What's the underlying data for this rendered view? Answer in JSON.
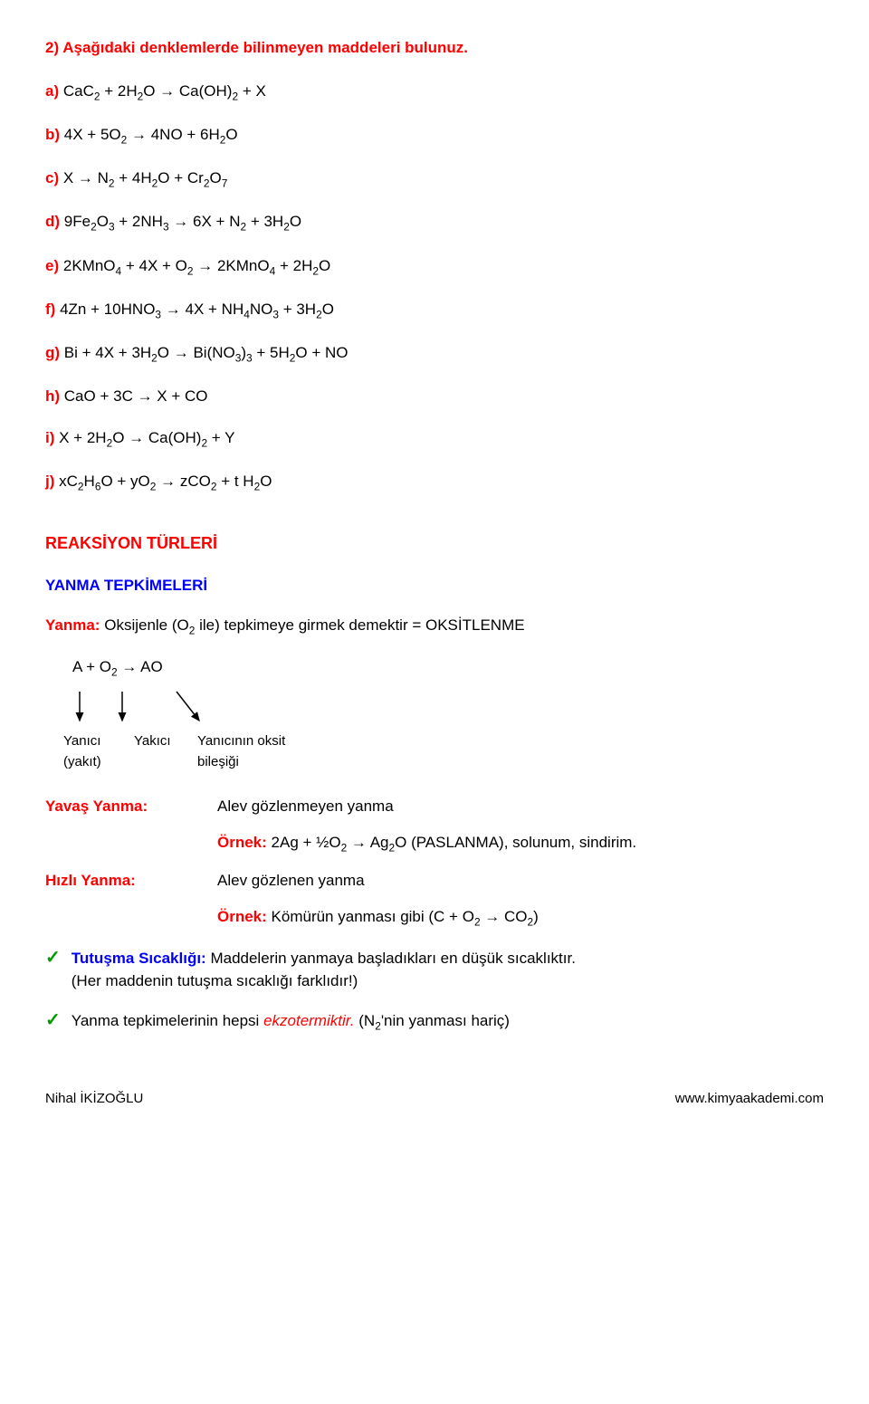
{
  "question": {
    "number": "2)",
    "text": "Aşağıdaki denklemlerde bilinmeyen maddeleri bulunuz."
  },
  "equations": {
    "a": {
      "lbl": "a)",
      "html": "CaC<sub>2</sub> + 2H<sub>2</sub>O → Ca(OH)<sub>2</sub> + X"
    },
    "b": {
      "lbl": "b)",
      "html": "4X + 5O<sub>2</sub> → 4NO + 6H<sub>2</sub>O"
    },
    "c": {
      "lbl": "c)",
      "html": "X → N<sub>2</sub> + 4H<sub>2</sub>O + Cr<sub>2</sub>O<sub>7</sub>"
    },
    "d": {
      "lbl": "d)",
      "html": "9Fe<sub>2</sub>O<sub>3</sub> + 2NH<sub>3</sub> → 6X + N<sub>2</sub> + 3H<sub>2</sub>O"
    },
    "e": {
      "lbl": "e)",
      "html": "2KMnO<sub>4</sub> + 4X + O<sub>2</sub> → 2KMnO<sub>4</sub> + 2H<sub>2</sub>O"
    },
    "f": {
      "lbl": "f)",
      "html": "4Zn + 10HNO<sub>3</sub> → 4X + NH<sub>4</sub>NO<sub>3</sub> + 3H<sub>2</sub>O"
    },
    "g": {
      "lbl": "g)",
      "html": "Bi + 4X + 3H<sub>2</sub>O  →  Bi(NO<sub>3</sub>)<sub>3</sub> + 5H<sub>2</sub>O + NO"
    },
    "h": {
      "lbl": "h)",
      "html": "CaO + 3C → X + CO"
    },
    "i": {
      "lbl": "i)",
      "html": "X + 2H<sub>2</sub>O →  Ca(OH)<sub>2</sub> + Y"
    },
    "j": {
      "lbl": "j)",
      "html": "xC<sub>2</sub>H<sub>6</sub>O + yO<sub>2</sub> →  zCO<sub>2</sub>  + t H<sub>2</sub>O"
    }
  },
  "section1": "REAKSİYON TÜRLERİ",
  "section2": "YANMA TEPKİMELERİ",
  "yanma_def": {
    "term": "Yanma:",
    "text_html": "Oksijenle (O<sub>2</sub> ile) tepkimeye girmek demektir = OKSİTLENME"
  },
  "formula_html": "A + O<sub>2</sub> → AO",
  "labels": {
    "col1a": "Yanıcı",
    "col1b": "(yakıt)",
    "col2": "Yakıcı",
    "col3a": "Yanıcının oksit",
    "col3b": "bileşiği"
  },
  "yavas": {
    "label": "Yavaş Yanma:",
    "desc": "Alev gözlenmeyen yanma",
    "ornek_lbl": "Örnek:",
    "ornek_html": "2Ag + ½O<sub>2</sub> → Ag<sub>2</sub>O (PASLANMA), solunum, sindirim."
  },
  "hizli": {
    "label": "Hızlı Yanma:",
    "desc": "Alev gözlenen yanma",
    "ornek_lbl": "Örnek:",
    "ornek_html": "Kömürün yanması gibi (C + O<sub>2</sub> → CO<sub>2</sub>)"
  },
  "bullets": {
    "b1": {
      "term": "Tutuşma Sıcaklığı:",
      "line1": "Maddelerin yanmaya başladıkları en düşük sıcaklıktır.",
      "line2": "(Her maddenin tutuşma sıcaklığı farklıdır!)"
    },
    "b2": {
      "pre": "Yanma tepkimelerinin hepsi ",
      "em": "ekzotermiktir.",
      "post_html": " (N<sub>2</sub>'nin yanması hariç)"
    }
  },
  "footer": {
    "left": "Nihal İKİZOĞLU",
    "right": "www.kimyaakademi.com"
  }
}
